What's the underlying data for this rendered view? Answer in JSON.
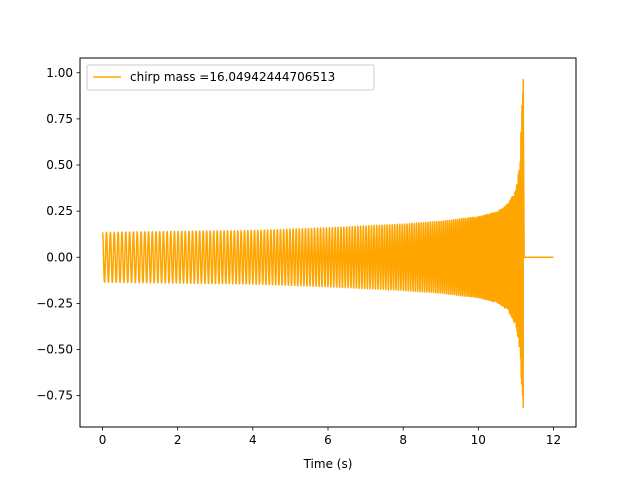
{
  "chart_data": {
    "type": "line",
    "title": "",
    "xlabel": "Time (s)",
    "ylabel": "",
    "xlim": [
      -0.6,
      12.6
    ],
    "ylim": [
      -0.92,
      1.08
    ],
    "xticks": [
      0,
      2,
      4,
      6,
      8,
      10,
      12
    ],
    "xtick_labels": [
      "0",
      "2",
      "4",
      "6",
      "8",
      "10",
      "12"
    ],
    "yticks": [
      -0.75,
      -0.5,
      -0.25,
      0.0,
      0.25,
      0.5,
      0.75,
      1.0
    ],
    "ytick_labels": [
      "−0.75",
      "−0.50",
      "−0.25",
      "0.00",
      "0.25",
      "0.50",
      "0.75",
      "1.00"
    ],
    "grid": false,
    "legend_position": "upper-left",
    "series": [
      {
        "name": "chirp mass =16.04942444706513",
        "color": "#ffa500",
        "merger_time": 11.2,
        "end_time": 12.0,
        "envelope": {
          "t": [
            0,
            2,
            4,
            6,
            8,
            9,
            10,
            10.5,
            10.8,
            11.0,
            11.1,
            11.15,
            11.2
          ],
          "upper": [
            0.135,
            0.14,
            0.145,
            0.16,
            0.18,
            0.195,
            0.22,
            0.245,
            0.29,
            0.37,
            0.5,
            0.78,
            1.0
          ],
          "lower": [
            -0.135,
            -0.14,
            -0.145,
            -0.16,
            -0.18,
            -0.195,
            -0.22,
            -0.245,
            -0.29,
            -0.37,
            -0.5,
            -0.7,
            -0.83
          ]
        }
      }
    ]
  }
}
